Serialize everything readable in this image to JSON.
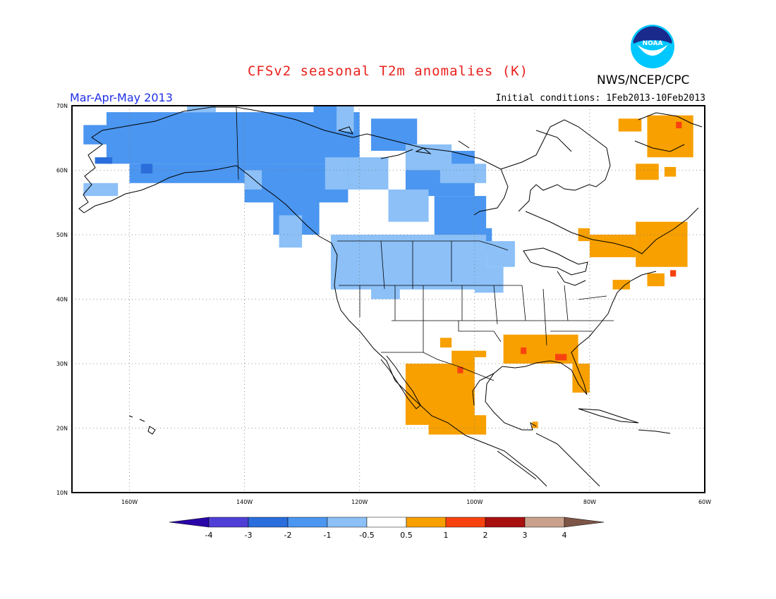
{
  "header": {
    "title": "CFSv2 seasonal T2m anomalies (K)",
    "agency": "NWS/NCEP/CPC",
    "season": "Mar-Apr-May 2013",
    "initial_conditions": "Initial conditions: 1Feb2013-10Feb2013",
    "logo_text": "NOAA"
  },
  "map": {
    "lon_labels": [
      "160W",
      "140W",
      "120W",
      "100W",
      "80W",
      "60W"
    ],
    "lat_labels": [
      "70N",
      "60N",
      "50N",
      "40N",
      "30N",
      "20N",
      "10N"
    ],
    "lon_range": [
      -170,
      -60
    ],
    "lat_range": [
      10,
      70
    ]
  },
  "colorbar": {
    "labels": [
      "-4",
      "-3",
      "-2",
      "-1",
      "-0.5",
      "0.5",
      "1",
      "2",
      "3",
      "4"
    ],
    "colors": [
      "#2a06a8",
      "#4f3fd6",
      "#2a6ddc",
      "#4b96f0",
      "#8cc0f7",
      "#ffffff",
      "#f7a000",
      "#f7420f",
      "#a80f0f",
      "#c9a08c",
      "#7d5546"
    ]
  },
  "anomaly_colors": {
    "cold_1": "#8cc0f7",
    "cold_2": "#4b96f0",
    "cold_3": "#2a6ddc",
    "warm_1": "#f7a000",
    "warm_2": "#f7420f"
  }
}
